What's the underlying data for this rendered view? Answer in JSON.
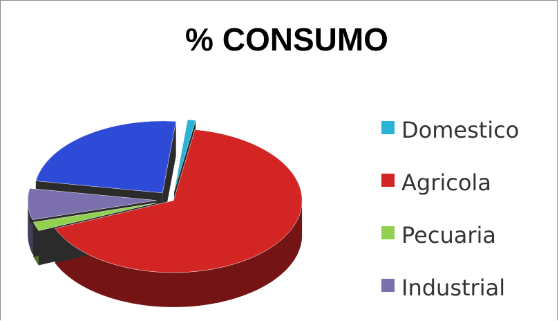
{
  "chart_data": {
    "type": "pie",
    "title": "% CONSUMO",
    "style": "3d-exploded",
    "legend_position": "right",
    "slices": [
      {
        "label": "Domestico",
        "value": 1,
        "color": "#2ab3d6"
      },
      {
        "label": "Agricola",
        "value": 66,
        "color": "#d42525"
      },
      {
        "label": "Pecuaria",
        "value": 2,
        "color": "#92d050"
      },
      {
        "label": "Industrial",
        "value": 7,
        "color": "#7b6fae"
      },
      {
        "label": "",
        "value": 24,
        "color": "#2e4bd8"
      }
    ]
  }
}
